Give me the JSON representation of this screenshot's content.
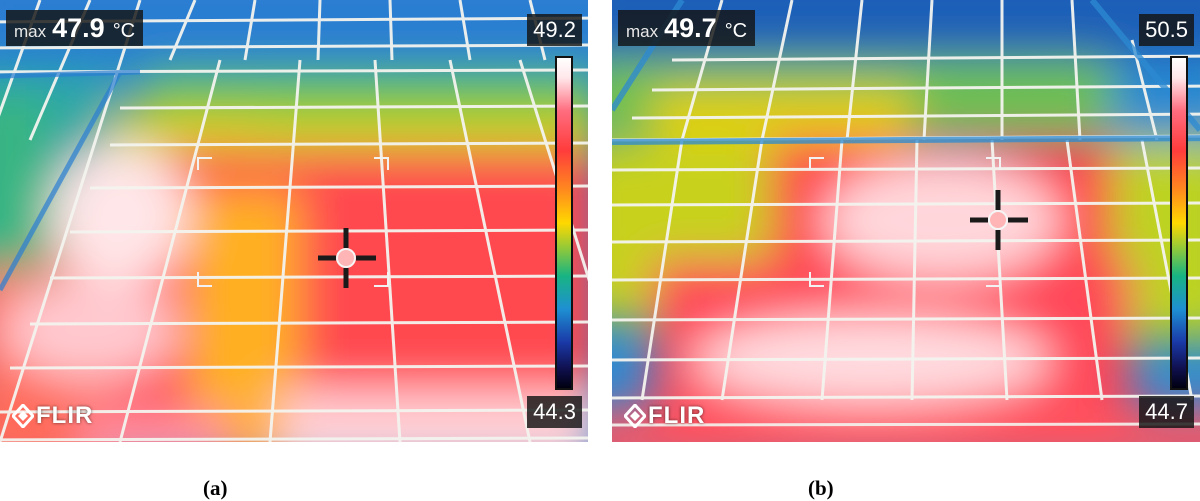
{
  "panels": [
    {
      "id": "a",
      "caption": "(a)",
      "max_label": "max",
      "max_value": "47.9",
      "unit": "°C",
      "scale_max": "49.2",
      "scale_min": "44.3",
      "logo": "FLIR"
    },
    {
      "id": "b",
      "caption": "(b)",
      "max_label": "max",
      "max_value": "49.7",
      "unit": "°C",
      "scale_max": "50.5",
      "scale_min": "44.7",
      "logo": "FLIR"
    }
  ],
  "palette": {
    "hot": "#ff3c4e",
    "hottest": "#ffe8ea",
    "warm": "#ffd400",
    "mid": "#3cc36e",
    "cool": "#1e90d2",
    "cold": "#0a1a5a"
  },
  "icons": [
    "crosshair-icon",
    "flir-logo-icon"
  ]
}
